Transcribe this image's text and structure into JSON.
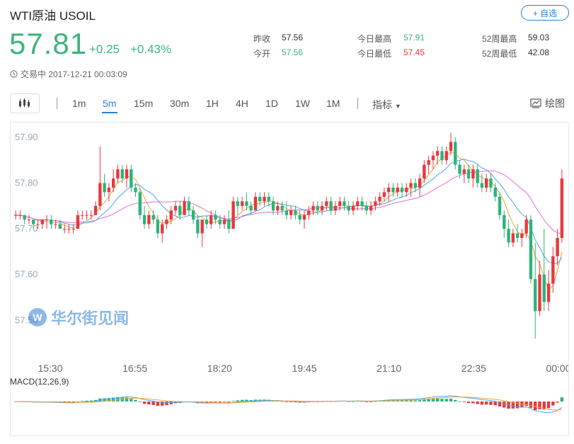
{
  "header": {
    "title": "WTI原油  USOIL",
    "follow_label": "+ 自选",
    "price": "57.81",
    "change": "+0.25",
    "change_pct": "+0.43%",
    "status": "交易中 2017-12-21 00:03:09"
  },
  "stats": {
    "prev_close_label": "昨收",
    "prev_close": "57.56",
    "open_label": "今开",
    "open": "57.56",
    "high_label": "今日最高",
    "high": "57.91",
    "low_label": "今日最低",
    "low": "57.45",
    "w52_high_label": "52周最高",
    "w52_high": "59.03",
    "w52_low_label": "52周最低",
    "w52_low": "42.08"
  },
  "toolbar": {
    "periods": [
      "1m",
      "5m",
      "15m",
      "30m",
      "1H",
      "4H",
      "1D",
      "1W",
      "1M"
    ],
    "active_period": "5m",
    "indicator_label": "指标",
    "draw_label": "绘图"
  },
  "watermark": {
    "text": "华尔街见闻",
    "logo_letter": "W"
  },
  "colors": {
    "up": "#e8383d",
    "down": "#2db37b",
    "accent": "#2d7fd3",
    "ma_short": "#f0a23a",
    "ma_mid": "#4aa8e6",
    "ma_long": "#e36fd0"
  },
  "chart_data": {
    "type": "candlestick",
    "x_ticks": [
      "15:30",
      "16:55",
      "18:20",
      "19:45",
      "21:10",
      "22:35",
      "00:00"
    ],
    "y_ticks": [
      "57.90",
      "57.80",
      "57.70",
      "57.60",
      "57.50"
    ],
    "ylim": [
      57.44,
      57.92
    ],
    "candles": [
      [
        57.73,
        57.74,
        57.72,
        57.73
      ],
      [
        57.73,
        57.74,
        57.72,
        57.73
      ],
      [
        57.73,
        57.73,
        57.71,
        57.72
      ],
      [
        57.72,
        57.73,
        57.71,
        57.72
      ],
      [
        57.72,
        57.72,
        57.7,
        57.71
      ],
      [
        57.71,
        57.72,
        57.7,
        57.71
      ],
      [
        57.71,
        57.72,
        57.7,
        57.72
      ],
      [
        57.72,
        57.73,
        57.7,
        57.72
      ],
      [
        57.72,
        57.73,
        57.7,
        57.71
      ],
      [
        57.71,
        57.72,
        57.7,
        57.71
      ],
      [
        57.71,
        57.72,
        57.7,
        57.7
      ],
      [
        57.7,
        57.71,
        57.69,
        57.7
      ],
      [
        57.7,
        57.71,
        57.69,
        57.7
      ],
      [
        57.7,
        57.71,
        57.69,
        57.7
      ],
      [
        57.7,
        57.74,
        57.7,
        57.73
      ],
      [
        57.73,
        57.74,
        57.72,
        57.73
      ],
      [
        57.73,
        57.74,
        57.72,
        57.73
      ],
      [
        57.73,
        57.74,
        57.72,
        57.73
      ],
      [
        57.73,
        57.76,
        57.73,
        57.75
      ],
      [
        57.75,
        57.88,
        57.74,
        57.8
      ],
      [
        57.8,
        57.82,
        57.77,
        57.78
      ],
      [
        57.78,
        57.8,
        57.76,
        57.79
      ],
      [
        57.79,
        57.83,
        57.78,
        57.81
      ],
      [
        57.81,
        57.84,
        57.8,
        57.83
      ],
      [
        57.83,
        57.84,
        57.8,
        57.81
      ],
      [
        57.81,
        57.84,
        57.79,
        57.83
      ],
      [
        57.83,
        57.84,
        57.78,
        57.79
      ],
      [
        57.79,
        57.8,
        57.77,
        57.78
      ],
      [
        57.78,
        57.79,
        57.72,
        57.73
      ],
      [
        57.73,
        57.75,
        57.7,
        57.71
      ],
      [
        57.71,
        57.74,
        57.7,
        57.73
      ],
      [
        57.73,
        57.74,
        57.71,
        57.72
      ],
      [
        57.72,
        57.73,
        57.68,
        57.69
      ],
      [
        57.69,
        57.72,
        57.67,
        57.71
      ],
      [
        57.71,
        57.73,
        57.7,
        57.72
      ],
      [
        57.72,
        57.75,
        57.71,
        57.74
      ],
      [
        57.74,
        57.76,
        57.73,
        57.75
      ],
      [
        57.75,
        57.76,
        57.72,
        57.73
      ],
      [
        57.73,
        57.77,
        57.73,
        57.76
      ],
      [
        57.76,
        57.77,
        57.73,
        57.74
      ],
      [
        57.74,
        57.75,
        57.71,
        57.72
      ],
      [
        57.72,
        57.73,
        57.68,
        57.69
      ],
      [
        57.69,
        57.72,
        57.66,
        57.72
      ],
      [
        57.72,
        57.73,
        57.7,
        57.71
      ],
      [
        57.71,
        57.74,
        57.7,
        57.73
      ],
      [
        57.73,
        57.74,
        57.71,
        57.72
      ],
      [
        57.72,
        57.73,
        57.7,
        57.71
      ],
      [
        57.71,
        57.73,
        57.7,
        57.72
      ],
      [
        57.72,
        57.74,
        57.69,
        57.7
      ],
      [
        57.7,
        57.77,
        57.7,
        57.76
      ],
      [
        57.76,
        57.77,
        57.73,
        57.75
      ],
      [
        57.75,
        57.77,
        57.74,
        57.76
      ],
      [
        57.76,
        57.78,
        57.74,
        57.75
      ],
      [
        57.75,
        57.76,
        57.73,
        57.74
      ],
      [
        57.74,
        57.78,
        57.74,
        57.77
      ],
      [
        57.77,
        57.78,
        57.75,
        57.76
      ],
      [
        57.76,
        57.78,
        57.75,
        57.77
      ],
      [
        57.77,
        57.78,
        57.75,
        57.76
      ],
      [
        57.76,
        57.77,
        57.73,
        57.74
      ],
      [
        57.74,
        57.76,
        57.73,
        57.75
      ],
      [
        57.75,
        57.76,
        57.73,
        57.74
      ],
      [
        57.74,
        57.76,
        57.72,
        57.73
      ],
      [
        57.73,
        57.75,
        57.72,
        57.74
      ],
      [
        57.74,
        57.75,
        57.72,
        57.73
      ],
      [
        57.73,
        57.74,
        57.71,
        57.72
      ],
      [
        57.72,
        57.74,
        57.7,
        57.73
      ],
      [
        57.73,
        57.75,
        57.72,
        57.74
      ],
      [
        57.74,
        57.76,
        57.73,
        57.75
      ],
      [
        57.75,
        57.76,
        57.73,
        57.74
      ],
      [
        57.74,
        57.76,
        57.73,
        57.75
      ],
      [
        57.75,
        57.77,
        57.74,
        57.76
      ],
      [
        57.76,
        57.77,
        57.73,
        57.74
      ],
      [
        57.74,
        57.76,
        57.73,
        57.75
      ],
      [
        57.75,
        57.77,
        57.74,
        57.76
      ],
      [
        57.76,
        57.77,
        57.74,
        57.75
      ],
      [
        57.75,
        57.76,
        57.73,
        57.74
      ],
      [
        57.74,
        57.76,
        57.73,
        57.75
      ],
      [
        57.75,
        57.77,
        57.74,
        57.76
      ],
      [
        57.76,
        57.77,
        57.74,
        57.75
      ],
      [
        57.75,
        57.76,
        57.73,
        57.74
      ],
      [
        57.74,
        57.76,
        57.73,
        57.75
      ],
      [
        57.75,
        57.77,
        57.74,
        57.76
      ],
      [
        57.76,
        57.78,
        57.75,
        57.77
      ],
      [
        57.77,
        57.79,
        57.76,
        57.78
      ],
      [
        57.78,
        57.8,
        57.76,
        57.79
      ],
      [
        57.79,
        57.8,
        57.77,
        57.78
      ],
      [
        57.78,
        57.8,
        57.77,
        57.79
      ],
      [
        57.79,
        57.8,
        57.77,
        57.78
      ],
      [
        57.78,
        57.8,
        57.77,
        57.79
      ],
      [
        57.79,
        57.81,
        57.77,
        57.8
      ],
      [
        57.8,
        57.81,
        57.78,
        57.79
      ],
      [
        57.79,
        57.82,
        57.77,
        57.81
      ],
      [
        57.81,
        57.85,
        57.8,
        57.84
      ],
      [
        57.84,
        57.86,
        57.82,
        57.85
      ],
      [
        57.85,
        57.87,
        57.83,
        57.86
      ],
      [
        57.86,
        57.88,
        57.84,
        57.87
      ],
      [
        57.87,
        57.88,
        57.84,
        57.85
      ],
      [
        57.85,
        57.88,
        57.84,
        57.87
      ],
      [
        57.87,
        57.91,
        57.86,
        57.89
      ],
      [
        57.89,
        57.9,
        57.83,
        57.84
      ],
      [
        57.84,
        57.85,
        57.81,
        57.82
      ],
      [
        57.82,
        57.84,
        57.8,
        57.83
      ],
      [
        57.83,
        57.84,
        57.8,
        57.81
      ],
      [
        57.81,
        57.84,
        57.79,
        57.83
      ],
      [
        57.83,
        57.84,
        57.79,
        57.8
      ],
      [
        57.8,
        57.82,
        57.78,
        57.79
      ],
      [
        57.79,
        57.82,
        57.78,
        57.81
      ],
      [
        57.81,
        57.82,
        57.78,
        57.79
      ],
      [
        57.79,
        57.8,
        57.76,
        57.77
      ],
      [
        57.77,
        57.78,
        57.72,
        57.73
      ],
      [
        57.73,
        57.74,
        57.68,
        57.7
      ],
      [
        57.7,
        57.72,
        57.66,
        57.67
      ],
      [
        57.67,
        57.7,
        57.66,
        57.69
      ],
      [
        57.69,
        57.71,
        57.67,
        57.68
      ],
      [
        57.68,
        57.7,
        57.66,
        57.69
      ],
      [
        57.69,
        57.73,
        57.68,
        57.72
      ],
      [
        57.72,
        57.73,
        57.58,
        57.59
      ],
      [
        57.59,
        57.67,
        57.46,
        57.52
      ],
      [
        57.52,
        57.63,
        57.51,
        57.6
      ],
      [
        57.6,
        57.7,
        57.52,
        57.54
      ],
      [
        57.54,
        57.61,
        57.52,
        57.58
      ],
      [
        57.58,
        57.66,
        57.56,
        57.64
      ],
      [
        57.64,
        57.7,
        57.62,
        57.68
      ],
      [
        57.68,
        57.83,
        57.67,
        57.81
      ]
    ],
    "indicator": {
      "name": "MACD(12,26,9)"
    }
  }
}
